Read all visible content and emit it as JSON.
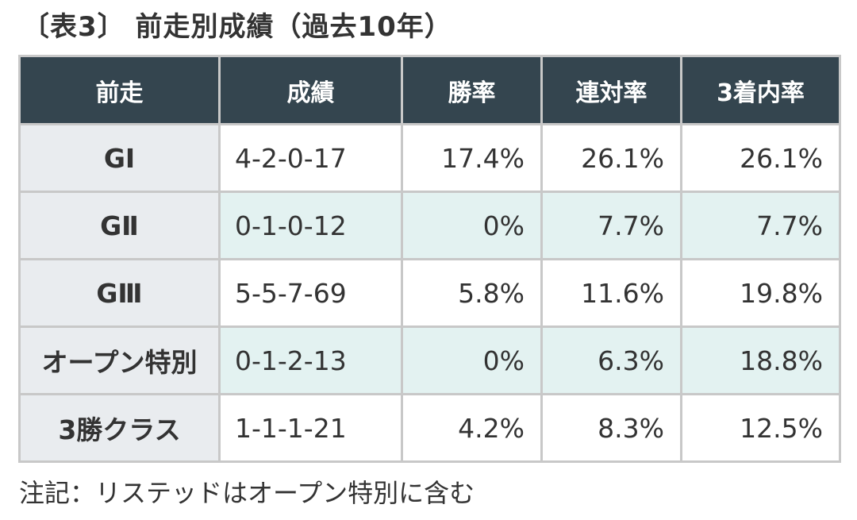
{
  "title": "〔表3〕 前走別成績（過去10年）",
  "table": {
    "headers": [
      "前走",
      "成績",
      "勝率",
      "連対率",
      "3着内率"
    ],
    "rows": [
      {
        "label": "GⅠ",
        "record": "4-2-0-17",
        "win_rate": "17.4%",
        "top2_rate": "26.1%",
        "top3_rate": "26.1%"
      },
      {
        "label": "GⅡ",
        "record": "0-1-0-12",
        "win_rate": "0%",
        "top2_rate": "7.7%",
        "top3_rate": "7.7%"
      },
      {
        "label": "GⅢ",
        "record": "5-5-7-69",
        "win_rate": "5.8%",
        "top2_rate": "11.6%",
        "top3_rate": "19.8%"
      },
      {
        "label": "オープン特別",
        "record": "0-1-2-13",
        "win_rate": "0%",
        "top2_rate": "6.3%",
        "top3_rate": "18.8%"
      },
      {
        "label": "3勝クラス",
        "record": "1-1-1-21",
        "win_rate": "4.2%",
        "top2_rate": "8.3%",
        "top3_rate": "12.5%"
      }
    ]
  },
  "note": "注記：リステッドはオープン特別に含む",
  "colors": {
    "header_bg": "#34454f",
    "header_text": "#ffffff",
    "label_bg": "#e9ecef",
    "alt_row_bg": "#e3f2f1",
    "border": "#c8c8c8"
  }
}
